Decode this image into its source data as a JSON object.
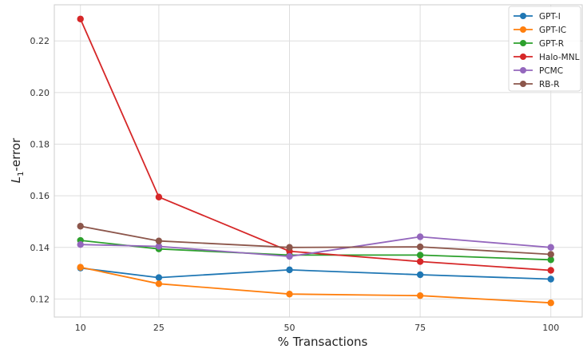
{
  "chart_data": {
    "type": "line",
    "xlabel": "% Transactions",
    "ylabel": "L",
    "ylabel_subscript": "1",
    "ylabel_suffix": "-error",
    "x": [
      10,
      25,
      50,
      75,
      100
    ],
    "x_tick_labels": [
      "10",
      "25",
      "50",
      "75",
      "100"
    ],
    "y_ticks": [
      0.12,
      0.14,
      0.16,
      0.18,
      0.2,
      0.22
    ],
    "y_tick_labels": [
      "0.12",
      "0.14",
      "0.16",
      "0.18",
      "0.20",
      "0.22"
    ],
    "ylim": [
      0.113,
      0.234
    ],
    "grid": true,
    "legend_position": "top-right",
    "series": [
      {
        "name": "GPT-I",
        "color": "#1f77b4",
        "values": [
          0.132,
          0.1283,
          0.1313,
          0.1294,
          0.1277
        ]
      },
      {
        "name": "GPT-IC",
        "color": "#ff7f0e",
        "values": [
          0.1323,
          0.1259,
          0.1219,
          0.1213,
          0.1185
        ]
      },
      {
        "name": "GPT-R",
        "color": "#2ca02c",
        "values": [
          0.1427,
          0.1394,
          0.137,
          0.137,
          0.1352
        ]
      },
      {
        "name": "Halo-MNL",
        "color": "#d62728",
        "values": [
          0.2285,
          0.1595,
          0.1385,
          0.1345,
          0.1311
        ]
      },
      {
        "name": "PCMC",
        "color": "#9467bd",
        "values": [
          0.1411,
          0.1404,
          0.1365,
          0.1441,
          0.14
        ]
      },
      {
        "name": "RB-R",
        "color": "#8c564b",
        "values": [
          0.1482,
          0.1425,
          0.14,
          0.1402,
          0.1373
        ]
      }
    ]
  }
}
